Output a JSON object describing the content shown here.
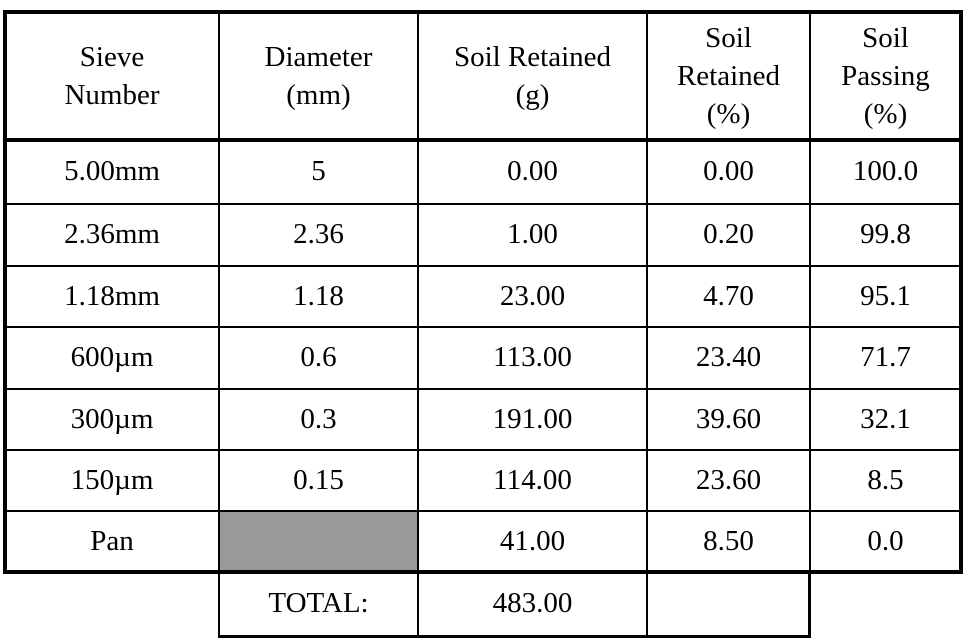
{
  "headers": [
    [
      "Sieve",
      "Number"
    ],
    [
      "Diameter",
      "(mm)"
    ],
    [
      "Soil Retained",
      "(g)"
    ],
    [
      "Soil",
      "Retained",
      "(%)"
    ],
    [
      "Soil",
      "Passing",
      "(%)"
    ]
  ],
  "rows": [
    {
      "sieve": "5.00mm",
      "diameter": "5",
      "retained_g": "0.00",
      "retained_pct": "0.00",
      "passing_pct": "100.0"
    },
    {
      "sieve": "2.36mm",
      "diameter": "2.36",
      "retained_g": "1.00",
      "retained_pct": "0.20",
      "passing_pct": "99.8"
    },
    {
      "sieve": "1.18mm",
      "diameter": "1.18",
      "retained_g": "23.00",
      "retained_pct": "4.70",
      "passing_pct": "95.1"
    },
    {
      "sieve": "600µm",
      "diameter": "0.6",
      "retained_g": "113.00",
      "retained_pct": "23.40",
      "passing_pct": "71.7"
    },
    {
      "sieve": "300µm",
      "diameter": "0.3",
      "retained_g": "191.00",
      "retained_pct": "39.60",
      "passing_pct": "32.1"
    },
    {
      "sieve": "150µm",
      "diameter": "0.15",
      "retained_g": "114.00",
      "retained_pct": "23.60",
      "passing_pct": "8.5"
    },
    {
      "sieve": "Pan",
      "diameter": "",
      "retained_g": "41.00",
      "retained_pct": "8.50",
      "passing_pct": "0.0"
    }
  ],
  "total": {
    "label": "TOTAL:",
    "value": "483.00"
  },
  "colors": {
    "line": "#000000",
    "shaded_cell": "#999999",
    "background": "#ffffff"
  }
}
